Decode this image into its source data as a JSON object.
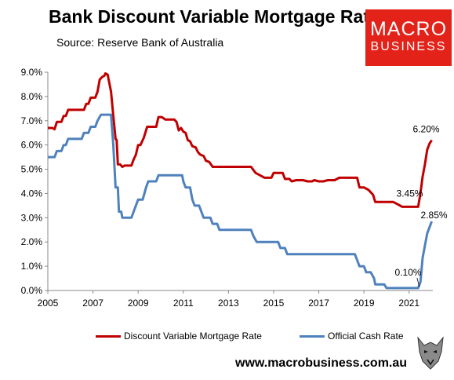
{
  "header": {
    "title": "Bank Discount Variable Mortgage Rate",
    "subtitle": "Source: Reserve Bank of Australia"
  },
  "logo": {
    "line1": "MACRO",
    "line2": "BUSINESS",
    "color": "#e32219"
  },
  "footer": {
    "url": "www.macrobusiness.com.au"
  },
  "chart_data": {
    "type": "line",
    "title": "Bank Discount Variable Mortgage Rate",
    "subtitle": "Source: Reserve Bank of Australia",
    "xlabel": "",
    "ylabel": "",
    "xlim": [
      2005,
      2022.05
    ],
    "ylim": [
      0,
      9
    ],
    "x_ticks": [
      2005,
      2007,
      2009,
      2011,
      2013,
      2015,
      2017,
      2019,
      2021
    ],
    "y_ticks": [
      "0.0%",
      "1.0%",
      "2.0%",
      "3.0%",
      "4.0%",
      "5.0%",
      "6.0%",
      "7.0%",
      "8.0%",
      "9.0%"
    ],
    "grid": false,
    "legend_position": "bottom",
    "series": [
      {
        "name": "Discount Variable Mortgage Rate",
        "color": "#c00000",
        "points": [
          [
            2005.0,
            6.7
          ],
          [
            2005.2,
            6.7
          ],
          [
            2005.3,
            6.65
          ],
          [
            2005.4,
            6.95
          ],
          [
            2005.6,
            6.95
          ],
          [
            2005.7,
            7.2
          ],
          [
            2005.8,
            7.2
          ],
          [
            2005.9,
            7.45
          ],
          [
            2006.3,
            7.45
          ],
          [
            2006.6,
            7.45
          ],
          [
            2006.7,
            7.7
          ],
          [
            2006.8,
            7.7
          ],
          [
            2006.9,
            7.95
          ],
          [
            2007.1,
            7.95
          ],
          [
            2007.2,
            8.2
          ],
          [
            2007.3,
            8.7
          ],
          [
            2007.4,
            8.8
          ],
          [
            2007.5,
            8.85
          ],
          [
            2007.55,
            8.95
          ],
          [
            2007.65,
            8.9
          ],
          [
            2007.8,
            8.2
          ],
          [
            2007.9,
            7.2
          ],
          [
            2008.0,
            6.25
          ],
          [
            2008.05,
            6.2
          ],
          [
            2008.1,
            5.2
          ],
          [
            2008.2,
            5.2
          ],
          [
            2008.3,
            5.1
          ],
          [
            2008.4,
            5.15
          ],
          [
            2008.6,
            5.15
          ],
          [
            2008.7,
            5.15
          ],
          [
            2008.8,
            5.4
          ],
          [
            2008.9,
            5.6
          ],
          [
            2009.0,
            6.0
          ],
          [
            2009.1,
            6.0
          ],
          [
            2009.25,
            6.3
          ],
          [
            2009.4,
            6.75
          ],
          [
            2009.8,
            6.75
          ],
          [
            2009.9,
            7.15
          ],
          [
            2010.05,
            7.15
          ],
          [
            2010.2,
            7.05
          ],
          [
            2010.4,
            7.05
          ],
          [
            2010.6,
            7.05
          ],
          [
            2010.7,
            6.95
          ],
          [
            2010.8,
            6.6
          ],
          [
            2010.9,
            6.7
          ],
          [
            2011.0,
            6.55
          ],
          [
            2011.1,
            6.5
          ],
          [
            2011.2,
            6.2
          ],
          [
            2011.3,
            6.15
          ],
          [
            2011.4,
            5.95
          ],
          [
            2011.55,
            5.9
          ],
          [
            2011.65,
            5.7
          ],
          [
            2011.75,
            5.6
          ],
          [
            2011.9,
            5.55
          ],
          [
            2012.0,
            5.35
          ],
          [
            2012.15,
            5.3
          ],
          [
            2012.3,
            5.1
          ],
          [
            2012.6,
            5.1
          ],
          [
            2013.0,
            5.1
          ],
          [
            2013.5,
            5.1
          ],
          [
            2014.0,
            5.1
          ],
          [
            2014.2,
            4.85
          ],
          [
            2014.4,
            4.75
          ],
          [
            2014.6,
            4.65
          ],
          [
            2014.9,
            4.65
          ],
          [
            2015.0,
            4.85
          ],
          [
            2015.4,
            4.85
          ],
          [
            2015.5,
            4.6
          ],
          [
            2015.7,
            4.6
          ],
          [
            2015.8,
            4.5
          ],
          [
            2016.0,
            4.55
          ],
          [
            2016.3,
            4.55
          ],
          [
            2016.5,
            4.5
          ],
          [
            2016.7,
            4.5
          ],
          [
            2016.8,
            4.55
          ],
          [
            2017.0,
            4.5
          ],
          [
            2017.2,
            4.5
          ],
          [
            2017.4,
            4.55
          ],
          [
            2017.7,
            4.55
          ],
          [
            2017.9,
            4.65
          ],
          [
            2018.2,
            4.65
          ],
          [
            2018.5,
            4.65
          ],
          [
            2018.7,
            4.65
          ],
          [
            2018.8,
            4.25
          ],
          [
            2019.0,
            4.25
          ],
          [
            2019.2,
            4.15
          ],
          [
            2019.4,
            3.95
          ],
          [
            2019.5,
            3.65
          ],
          [
            2019.8,
            3.65
          ],
          [
            2020.0,
            3.65
          ],
          [
            2020.3,
            3.65
          ],
          [
            2020.5,
            3.55
          ],
          [
            2020.7,
            3.45
          ],
          [
            2021.2,
            3.45
          ],
          [
            2021.4,
            3.45
          ],
          [
            2021.5,
            4.0
          ],
          [
            2021.6,
            4.7
          ],
          [
            2021.7,
            5.2
          ],
          [
            2021.8,
            5.8
          ],
          [
            2021.9,
            6.05
          ],
          [
            2022.0,
            6.2
          ]
        ]
      },
      {
        "name": "Official Cash Rate",
        "color": "#4f81bd",
        "points": [
          [
            2005.0,
            5.5
          ],
          [
            2005.3,
            5.5
          ],
          [
            2005.4,
            5.75
          ],
          [
            2005.6,
            5.75
          ],
          [
            2005.7,
            6.0
          ],
          [
            2005.8,
            6.0
          ],
          [
            2005.9,
            6.25
          ],
          [
            2006.5,
            6.25
          ],
          [
            2006.6,
            6.5
          ],
          [
            2006.8,
            6.5
          ],
          [
            2006.9,
            6.75
          ],
          [
            2007.1,
            6.75
          ],
          [
            2007.2,
            7.0
          ],
          [
            2007.35,
            7.25
          ],
          [
            2007.8,
            7.25
          ],
          [
            2007.9,
            6.0
          ],
          [
            2008.0,
            4.25
          ],
          [
            2008.1,
            4.25
          ],
          [
            2008.15,
            3.25
          ],
          [
            2008.25,
            3.25
          ],
          [
            2008.3,
            3.0
          ],
          [
            2008.7,
            3.0
          ],
          [
            2008.8,
            3.25
          ],
          [
            2009.0,
            3.75
          ],
          [
            2009.2,
            3.75
          ],
          [
            2009.35,
            4.25
          ],
          [
            2009.45,
            4.5
          ],
          [
            2009.8,
            4.5
          ],
          [
            2009.9,
            4.75
          ],
          [
            2010.6,
            4.75
          ],
          [
            2010.95,
            4.75
          ],
          [
            2011.0,
            4.5
          ],
          [
            2011.1,
            4.25
          ],
          [
            2011.3,
            4.25
          ],
          [
            2011.4,
            3.75
          ],
          [
            2011.5,
            3.5
          ],
          [
            2011.7,
            3.5
          ],
          [
            2011.8,
            3.25
          ],
          [
            2011.9,
            3.0
          ],
          [
            2012.2,
            3.0
          ],
          [
            2012.3,
            2.75
          ],
          [
            2012.5,
            2.75
          ],
          [
            2012.6,
            2.5
          ],
          [
            2013.0,
            2.5
          ],
          [
            2013.5,
            2.5
          ],
          [
            2014.0,
            2.5
          ],
          [
            2014.1,
            2.25
          ],
          [
            2014.25,
            2.0
          ],
          [
            2014.5,
            2.0
          ],
          [
            2015.0,
            2.0
          ],
          [
            2015.2,
            2.0
          ],
          [
            2015.3,
            1.75
          ],
          [
            2015.5,
            1.75
          ],
          [
            2015.6,
            1.5
          ],
          [
            2016.0,
            1.5
          ],
          [
            2017.0,
            1.5
          ],
          [
            2018.0,
            1.5
          ],
          [
            2018.4,
            1.5
          ],
          [
            2018.6,
            1.5
          ],
          [
            2018.7,
            1.25
          ],
          [
            2018.8,
            1.0
          ],
          [
            2019.0,
            1.0
          ],
          [
            2019.1,
            0.75
          ],
          [
            2019.3,
            0.75
          ],
          [
            2019.45,
            0.5
          ],
          [
            2019.5,
            0.25
          ],
          [
            2019.9,
            0.25
          ],
          [
            2020.0,
            0.1
          ],
          [
            2020.5,
            0.1
          ],
          [
            2021.0,
            0.1
          ],
          [
            2021.4,
            0.1
          ],
          [
            2021.5,
            0.35
          ],
          [
            2021.6,
            1.35
          ],
          [
            2021.7,
            1.85
          ],
          [
            2021.8,
            2.35
          ],
          [
            2021.9,
            2.6
          ],
          [
            2022.0,
            2.85
          ]
        ]
      }
    ],
    "annotations": [
      {
        "text": "6.20%",
        "x": 2022.0,
        "y": 6.2
      },
      {
        "text": "3.45%",
        "x": 2021.2,
        "y": 3.45
      },
      {
        "text": "2.85%",
        "x": 2022.0,
        "y": 2.85
      },
      {
        "text": "0.10%",
        "x": 2021.2,
        "y": 0.1
      }
    ]
  }
}
